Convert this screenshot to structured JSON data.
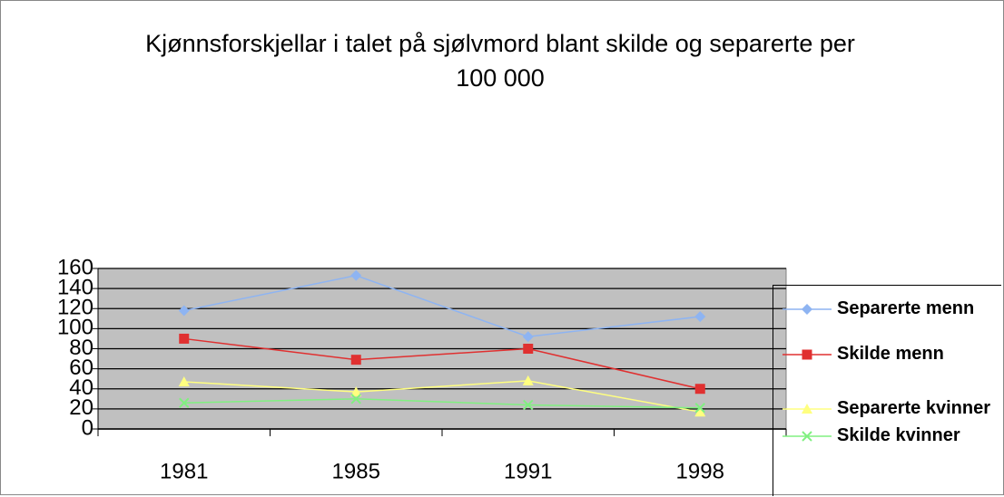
{
  "chart_data": {
    "type": "line",
    "title": "Kjønnsforskjellar i talet på sjølvmord blant skilde og separerte per 100 000",
    "categories": [
      "1981",
      "1985",
      "1991",
      "1998"
    ],
    "series": [
      {
        "name": "Separerte menn",
        "color": "#8eb4f2",
        "marker": "diamond",
        "values": [
          118,
          153,
          92,
          112
        ]
      },
      {
        "name": "Skilde menn",
        "color": "#e03030",
        "marker": "square",
        "values": [
          90,
          69,
          80,
          40
        ]
      },
      {
        "name": "Separerte kvinner",
        "color": "#ffff80",
        "marker": "triangle",
        "values": [
          47,
          37,
          48,
          17
        ]
      },
      {
        "name": "Skilde kvinner",
        "color": "#80f080",
        "marker": "x",
        "values": [
          26,
          30,
          24,
          21
        ]
      }
    ],
    "ylim": [
      0,
      160
    ],
    "yticks": [
      0,
      20,
      40,
      60,
      80,
      100,
      120,
      140,
      160
    ],
    "grid": true
  }
}
